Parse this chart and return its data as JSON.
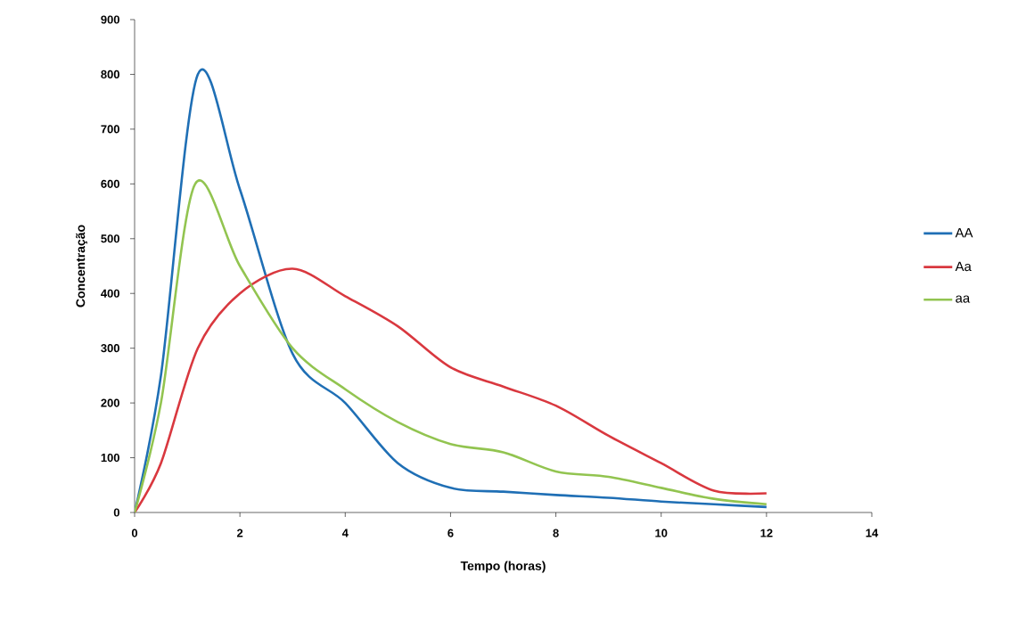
{
  "chart_data": {
    "type": "line",
    "xlabel": "Tempo (horas)",
    "ylabel": "Concentração",
    "xlim": [
      0,
      14
    ],
    "xticks": [
      0,
      2,
      4,
      6,
      8,
      10,
      12,
      14
    ],
    "ylim": [
      0,
      900
    ],
    "yticks": [
      0,
      100,
      200,
      300,
      400,
      500,
      600,
      700,
      800,
      900
    ],
    "grid": false,
    "legend": "right",
    "marker": "none",
    "line_style": "solid",
    "series": [
      {
        "name": "AA",
        "color": "#1f6fb5",
        "x": [
          0,
          0.5,
          1.2,
          2,
          3,
          4,
          5,
          6,
          7,
          8,
          9,
          10,
          11,
          12
        ],
        "values": [
          0,
          250,
          800,
          590,
          290,
          200,
          90,
          45,
          38,
          32,
          27,
          20,
          15,
          10
        ]
      },
      {
        "name": "Aa",
        "color": "#d9383f",
        "x": [
          0,
          0.5,
          1.2,
          2,
          3,
          4,
          5,
          6,
          7,
          8,
          9,
          10,
          11,
          12
        ],
        "values": [
          0,
          90,
          300,
          400,
          445,
          395,
          340,
          265,
          230,
          195,
          140,
          90,
          40,
          35
        ]
      },
      {
        "name": "aa",
        "color": "#92c450",
        "x": [
          0,
          0.5,
          1.15,
          2,
          3,
          4,
          5,
          6,
          7,
          8,
          9,
          10,
          11,
          12
        ],
        "values": [
          0,
          200,
          600,
          450,
          300,
          225,
          165,
          125,
          110,
          75,
          65,
          45,
          25,
          15
        ]
      }
    ]
  }
}
